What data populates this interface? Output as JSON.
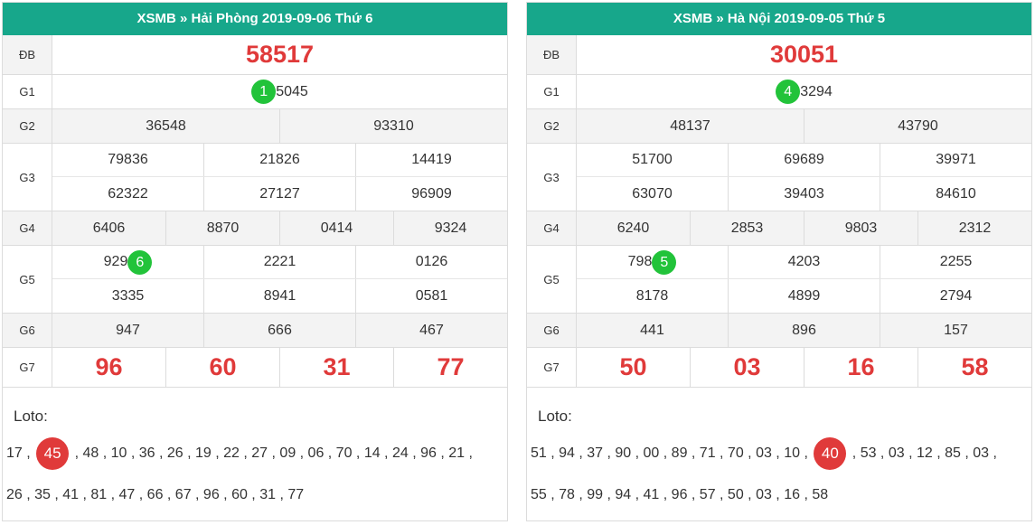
{
  "left": {
    "header": "XSMB » Hải Phòng  2019-09-06  Thứ 6",
    "labels": {
      "db": "ĐB",
      "g1": "G1",
      "g2": "G2",
      "g3": "G3",
      "g4": "G4",
      "g5": "G5",
      "g6": "G6",
      "g7": "G7"
    },
    "db": "58517",
    "g1": {
      "badge": "1",
      "rest": "5045"
    },
    "g2": [
      "36548",
      "93310"
    ],
    "g3_row1": [
      "79836",
      "21826",
      "14419"
    ],
    "g3_row2": [
      "62322",
      "27127",
      "96909"
    ],
    "g4": [
      "6406",
      "8870",
      "0414",
      "9324"
    ],
    "g5_row1": [
      {
        "prefix": "929",
        "badge": "6"
      },
      "2221",
      "0126"
    ],
    "g5_row2": [
      "3335",
      "8941",
      "0581"
    ],
    "g6": [
      "947",
      "666",
      "467"
    ],
    "g7": [
      "96",
      "60",
      "31",
      "77"
    ],
    "loto_title": "Loto:",
    "loto_line1_a": "17 ,",
    "loto_line1_ball": "45",
    "loto_line1_b": ", 48 , 10 , 36 , 26 , 19 , 22 , 27 , 09 , 06 , 70 , 14 , 24 , 96 , 21 ,",
    "loto_line2": "26 , 35 , 41 , 81 , 47 , 66 , 67 , 96 , 60 , 31 , 77"
  },
  "right": {
    "header": "XSMB » Hà Nội  2019-09-05  Thứ 5",
    "labels": {
      "db": "ĐB",
      "g1": "G1",
      "g2": "G2",
      "g3": "G3",
      "g4": "G4",
      "g5": "G5",
      "g6": "G6",
      "g7": "G7"
    },
    "db": "30051",
    "g1": {
      "badge": "4",
      "rest": "3294"
    },
    "g2": [
      "48137",
      "43790"
    ],
    "g3_row1": [
      "51700",
      "69689",
      "39971"
    ],
    "g3_row2": [
      "63070",
      "39403",
      "84610"
    ],
    "g4": [
      "6240",
      "2853",
      "9803",
      "2312"
    ],
    "g5_row1": [
      {
        "prefix": "798",
        "badge": "5"
      },
      "4203",
      "2255"
    ],
    "g5_row2": [
      "8178",
      "4899",
      "2794"
    ],
    "g6": [
      "441",
      "896",
      "157"
    ],
    "g7": [
      "50",
      "03",
      "16",
      "58"
    ],
    "loto_title": "Loto:",
    "loto_line1_a": "51 , 94 , 37 , 90 , 00 , 89 , 71 , 70 , 03 , 10 ,",
    "loto_line1_ball": "40",
    "loto_line1_b": ", 53 , 03 , 12 , 85 , 03 ,",
    "loto_line2": "55 , 78 , 99 , 94 , 41 , 96 , 57 , 50 , 03 , 16 , 58"
  },
  "colors": {
    "header": "#17a78b",
    "red": "#e03a3a",
    "green": "#22c33a"
  }
}
